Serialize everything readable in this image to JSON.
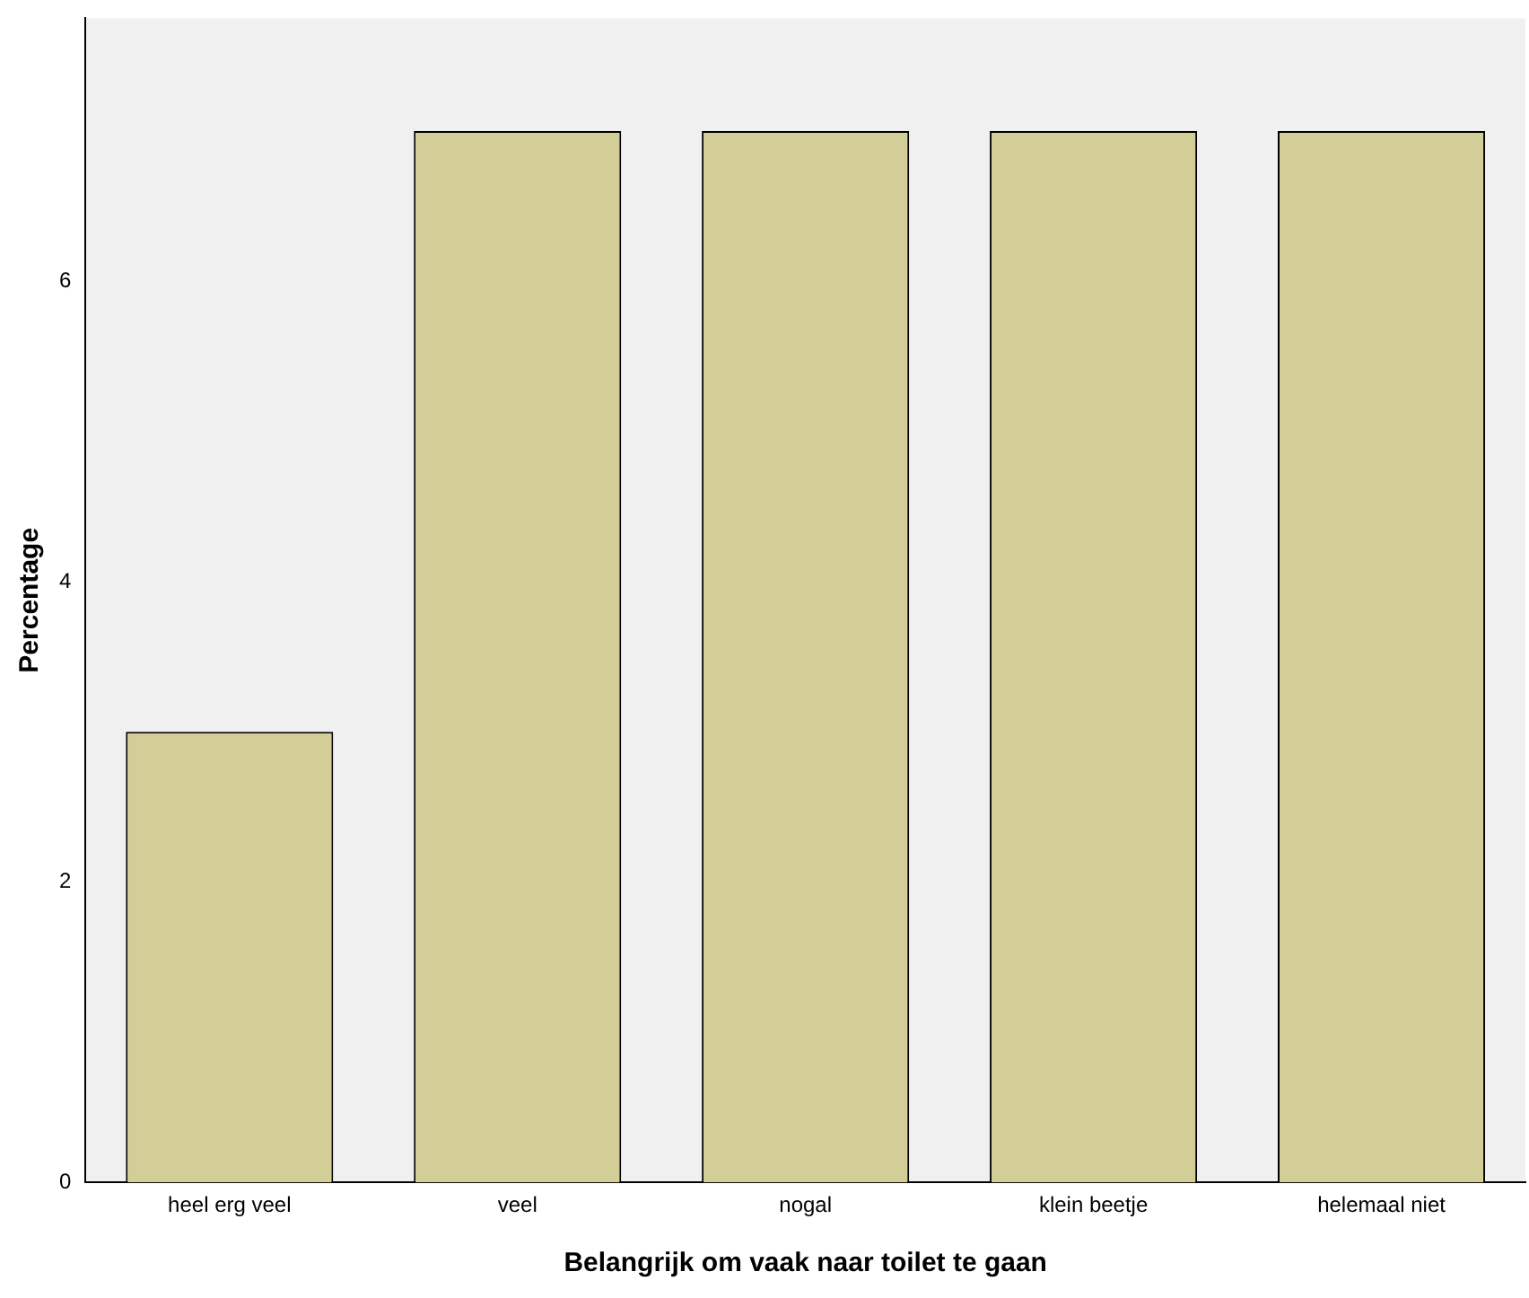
{
  "chart_data": {
    "type": "bar",
    "xlabel": "Belangrijk om vaak naar toilet te gaan",
    "ylabel": "Percentage",
    "categories": [
      "heel erg veel",
      "veel",
      "nogal",
      "klein beetje",
      "helemaal niet"
    ],
    "values": [
      3,
      7,
      7,
      7,
      7
    ],
    "color": "#d3ce97",
    "ylim": [
      0,
      7.75
    ],
    "yticks": [
      0,
      2,
      4,
      6
    ],
    "grid": false,
    "legend": false
  }
}
